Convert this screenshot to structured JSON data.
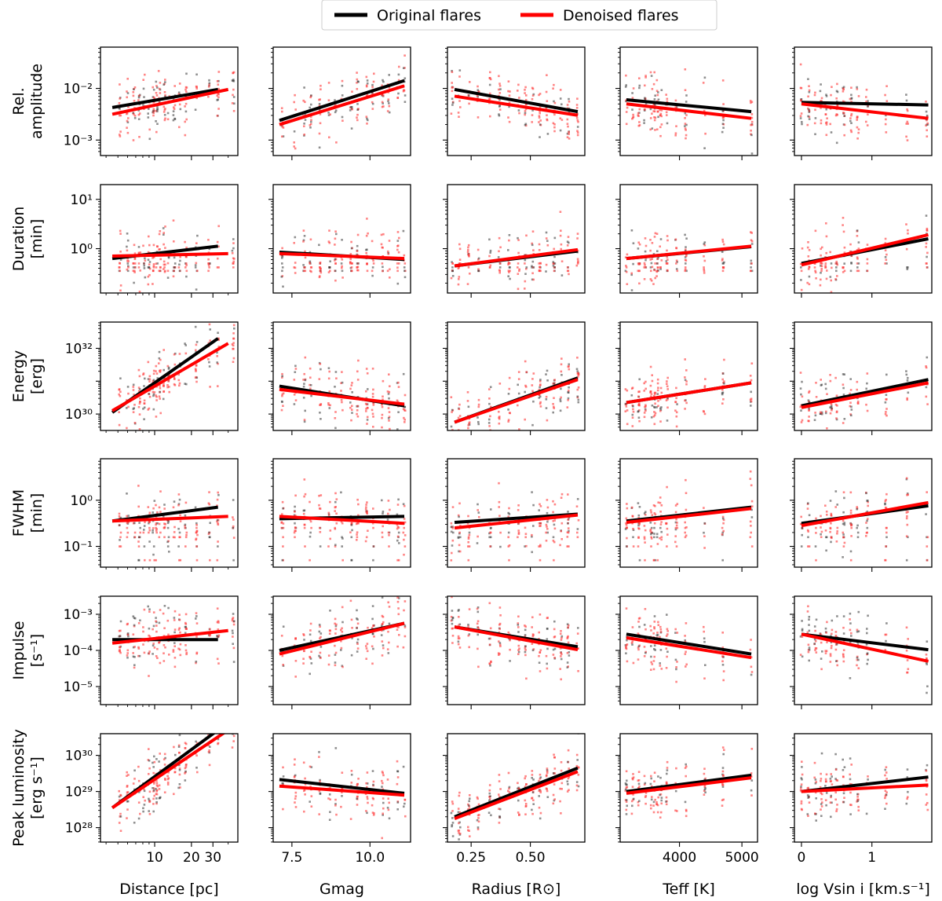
{
  "legend": {
    "entries": [
      {
        "label": "Original flares",
        "color": "#000000"
      },
      {
        "label": "Denoised flares",
        "color": "#ff0000"
      }
    ],
    "placement": "top-center"
  },
  "chart_data": {
    "type": "scatter",
    "grid": false,
    "columns": [
      {
        "key": "distance",
        "xlabel": "Distance [pc]",
        "xscale": "log",
        "xlim": [
          3.6,
          48
        ],
        "xticks": [
          10,
          20,
          30
        ],
        "xticklabels": [
          "10",
          "20",
          "30"
        ]
      },
      {
        "key": "gmag",
        "xlabel": "Gmag",
        "xscale": "linear",
        "xlim": [
          6.9,
          11.3
        ],
        "xticks": [
          7.5,
          10.0
        ],
        "xticklabels": [
          "7.5",
          "10.0"
        ]
      },
      {
        "key": "radius",
        "xlabel": "Radius [R⊙]",
        "xscale": "linear",
        "xlim": [
          0.15,
          0.73
        ],
        "xticks": [
          0.25,
          0.5
        ],
        "xticklabels": [
          "0.25",
          "0.50"
        ]
      },
      {
        "key": "teff",
        "xlabel": "Teff [K]",
        "xscale": "linear",
        "xlim": [
          3050,
          5250
        ],
        "xticks": [
          4000,
          5000
        ],
        "xticklabels": [
          "4000",
          "5000"
        ]
      },
      {
        "key": "vsini",
        "xlabel": "log Vsin i [km.s⁻¹]",
        "xscale": "linear",
        "xlim": [
          -0.1,
          1.85
        ],
        "xticks": [
          0,
          1
        ],
        "xticklabels": [
          "0",
          "1"
        ]
      }
    ],
    "rows": [
      {
        "key": "rel_amplitude",
        "ylabel_lines": [
          "Rel.",
          "amplitude"
        ],
        "yscale": "log",
        "ylim_log10": [
          -3.3,
          -1.2
        ],
        "yticks_log10": [
          -3,
          -2
        ],
        "yticklabels": [
          "10⁻³",
          "10⁻²"
        ]
      },
      {
        "key": "duration",
        "ylabel_lines": [
          "Duration",
          "[min]"
        ],
        "yscale": "log",
        "ylim_log10": [
          -0.9,
          1.3
        ],
        "yticks_log10": [
          0,
          1
        ],
        "yticklabels": [
          "10⁰",
          "10¹"
        ]
      },
      {
        "key": "energy",
        "ylabel_lines": [
          "Energy",
          "[erg]"
        ],
        "yscale": "log",
        "ylim_log10": [
          29.5,
          32.8
        ],
        "yticks_log10": [
          30,
          32
        ],
        "yticklabels": [
          "10³⁰",
          "10³²"
        ]
      },
      {
        "key": "fwhm",
        "ylabel_lines": [
          "FWHM",
          "[min]"
        ],
        "yscale": "log",
        "ylim_log10": [
          -1.45,
          0.9
        ],
        "yticks_log10": [
          -1,
          0
        ],
        "yticklabels": [
          "10⁻¹",
          "10⁰"
        ]
      },
      {
        "key": "impulse",
        "ylabel_lines": [
          "Impulse",
          "[s⁻¹]"
        ],
        "yscale": "log",
        "ylim_log10": [
          -5.5,
          -2.5
        ],
        "yticks_log10": [
          -5,
          -4,
          -3
        ],
        "yticklabels": [
          "10⁻⁵",
          "10⁻⁴",
          "10⁻³"
        ]
      },
      {
        "key": "peak_luminosity",
        "ylabel_lines": [
          "Peak luminosity",
          "[erg s⁻¹]"
        ],
        "yscale": "log",
        "ylim_log10": [
          27.6,
          30.6
        ],
        "yticks_log10": [
          28,
          29,
          30
        ],
        "yticklabels": [
          "10²⁸",
          "10²⁹",
          "10³⁰"
        ]
      }
    ],
    "fit_lines_log10y": [
      [
        {
          "original": [
            [
              4.5,
              -2.37
            ],
            [
              33,
              -2.02
            ]
          ],
          "denoised": [
            [
              4.5,
              -2.5
            ],
            [
              40,
              -2.02
            ]
          ]
        },
        {
          "original": [
            [
              7.1,
              -2.62
            ],
            [
              11.1,
              -1.85
            ]
          ],
          "denoised": [
            [
              7.1,
              -2.7
            ],
            [
              11.1,
              -1.95
            ]
          ]
        },
        {
          "original": [
            [
              0.18,
              -2.02
            ],
            [
              0.7,
              -2.45
            ]
          ],
          "denoised": [
            [
              0.18,
              -2.15
            ],
            [
              0.7,
              -2.52
            ]
          ]
        },
        {
          "original": [
            [
              3150,
              -2.22
            ],
            [
              5150,
              -2.45
            ]
          ],
          "denoised": [
            [
              3150,
              -2.3
            ],
            [
              5150,
              -2.58
            ]
          ]
        },
        {
          "original": [
            [
              0,
              -2.27
            ],
            [
              1.8,
              -2.32
            ]
          ],
          "denoised": [
            [
              0,
              -2.3
            ],
            [
              1.8,
              -2.58
            ]
          ]
        }
      ],
      [
        {
          "original": [
            [
              4.5,
              -0.2
            ],
            [
              33,
              0.05
            ]
          ],
          "denoised": [
            [
              4.5,
              -0.15
            ],
            [
              40,
              -0.1
            ]
          ]
        },
        {
          "original": [
            [
              7.1,
              -0.07
            ],
            [
              11.1,
              -0.22
            ]
          ],
          "denoised": [
            [
              7.1,
              -0.1
            ],
            [
              11.1,
              -0.2
            ]
          ]
        },
        {
          "original": [
            [
              0.18,
              -0.35
            ],
            [
              0.7,
              -0.05
            ]
          ],
          "denoised": [
            [
              0.18,
              -0.35
            ],
            [
              0.7,
              -0.02
            ]
          ]
        },
        {
          "original": [
            [
              3150,
              -0.2
            ],
            [
              5150,
              0.04
            ]
          ],
          "denoised": [
            [
              3150,
              -0.2
            ],
            [
              5150,
              0.05
            ]
          ]
        },
        {
          "original": [
            [
              0,
              -0.3
            ],
            [
              1.8,
              0.2
            ]
          ],
          "denoised": [
            [
              0,
              -0.33
            ],
            [
              1.8,
              0.28
            ]
          ]
        }
      ],
      [
        {
          "original": [
            [
              4.5,
              30.05
            ],
            [
              33,
              32.3
            ]
          ],
          "denoised": [
            [
              4.5,
              30.1
            ],
            [
              40,
              32.15
            ]
          ]
        },
        {
          "original": [
            [
              7.1,
              30.85
            ],
            [
              11.1,
              30.25
            ]
          ],
          "denoised": [
            [
              7.1,
              30.75
            ],
            [
              11.1,
              30.3
            ]
          ]
        },
        {
          "original": [
            [
              0.18,
              29.75
            ],
            [
              0.7,
              31.1
            ]
          ],
          "denoised": [
            [
              0.18,
              29.75
            ],
            [
              0.7,
              31.05
            ]
          ]
        },
        {
          "original": [
            [
              3150,
              30.35
            ],
            [
              5150,
              30.95
            ]
          ],
          "denoised": [
            [
              3150,
              30.35
            ],
            [
              5150,
              30.95
            ]
          ]
        },
        {
          "original": [
            [
              0,
              30.25
            ],
            [
              1.8,
              31.05
            ]
          ],
          "denoised": [
            [
              0,
              30.2
            ],
            [
              1.8,
              30.95
            ]
          ]
        }
      ],
      [
        {
          "original": [
            [
              4.5,
              -0.45
            ],
            [
              33,
              -0.15
            ]
          ],
          "denoised": [
            [
              4.5,
              -0.45
            ],
            [
              40,
              -0.35
            ]
          ]
        },
        {
          "original": [
            [
              7.1,
              -0.4
            ],
            [
              11.1,
              -0.35
            ]
          ],
          "denoised": [
            [
              7.1,
              -0.35
            ],
            [
              11.1,
              -0.5
            ]
          ]
        },
        {
          "original": [
            [
              0.18,
              -0.48
            ],
            [
              0.7,
              -0.3
            ]
          ],
          "denoised": [
            [
              0.18,
              -0.6
            ],
            [
              0.7,
              -0.32
            ]
          ]
        },
        {
          "original": [
            [
              3150,
              -0.45
            ],
            [
              5150,
              -0.15
            ]
          ],
          "denoised": [
            [
              3150,
              -0.48
            ],
            [
              5150,
              -0.18
            ]
          ]
        },
        {
          "original": [
            [
              0,
              -0.5
            ],
            [
              1.8,
              -0.12
            ]
          ],
          "denoised": [
            [
              0,
              -0.55
            ],
            [
              1.8,
              -0.05
            ]
          ]
        }
      ],
      [
        {
          "original": [
            [
              4.5,
              -3.7
            ],
            [
              33,
              -3.7
            ]
          ],
          "denoised": [
            [
              4.5,
              -3.8
            ],
            [
              40,
              -3.45
            ]
          ]
        },
        {
          "original": [
            [
              7.1,
              -4.0
            ],
            [
              11.1,
              -3.25
            ]
          ],
          "denoised": [
            [
              7.1,
              -4.1
            ],
            [
              11.1,
              -3.25
            ]
          ]
        },
        {
          "original": [
            [
              0.18,
              -3.35
            ],
            [
              0.7,
              -3.9
            ]
          ],
          "denoised": [
            [
              0.18,
              -3.35
            ],
            [
              0.7,
              -3.98
            ]
          ]
        },
        {
          "original": [
            [
              3150,
              -3.55
            ],
            [
              5150,
              -4.1
            ]
          ],
          "denoised": [
            [
              3150,
              -3.65
            ],
            [
              5150,
              -4.2
            ]
          ]
        },
        {
          "original": [
            [
              0,
              -3.55
            ],
            [
              1.8,
              -3.98
            ]
          ],
          "denoised": [
            [
              0,
              -3.55
            ],
            [
              1.8,
              -4.3
            ]
          ]
        }
      ],
      [
        {
          "original": [
            [
              4.5,
              28.55
            ],
            [
              33,
              30.7
            ]
          ],
          "denoised": [
            [
              4.5,
              28.55
            ],
            [
              40,
              30.7
            ]
          ]
        },
        {
          "original": [
            [
              7.1,
              29.33
            ],
            [
              11.1,
              28.95
            ]
          ],
          "denoised": [
            [
              7.1,
              29.15
            ],
            [
              11.1,
              28.9
            ]
          ]
        },
        {
          "original": [
            [
              0.18,
              28.3
            ],
            [
              0.7,
              29.65
            ]
          ],
          "denoised": [
            [
              0.18,
              28.25
            ],
            [
              0.7,
              29.55
            ]
          ]
        },
        {
          "original": [
            [
              3150,
              29.0
            ],
            [
              5150,
              29.45
            ]
          ],
          "denoised": [
            [
              3150,
              28.95
            ],
            [
              5150,
              29.38
            ]
          ]
        },
        {
          "original": [
            [
              0,
              29.0
            ],
            [
              1.8,
              29.4
            ]
          ],
          "denoised": [
            [
              0,
              29.0
            ],
            [
              1.8,
              29.18
            ]
          ]
        }
      ]
    ]
  }
}
